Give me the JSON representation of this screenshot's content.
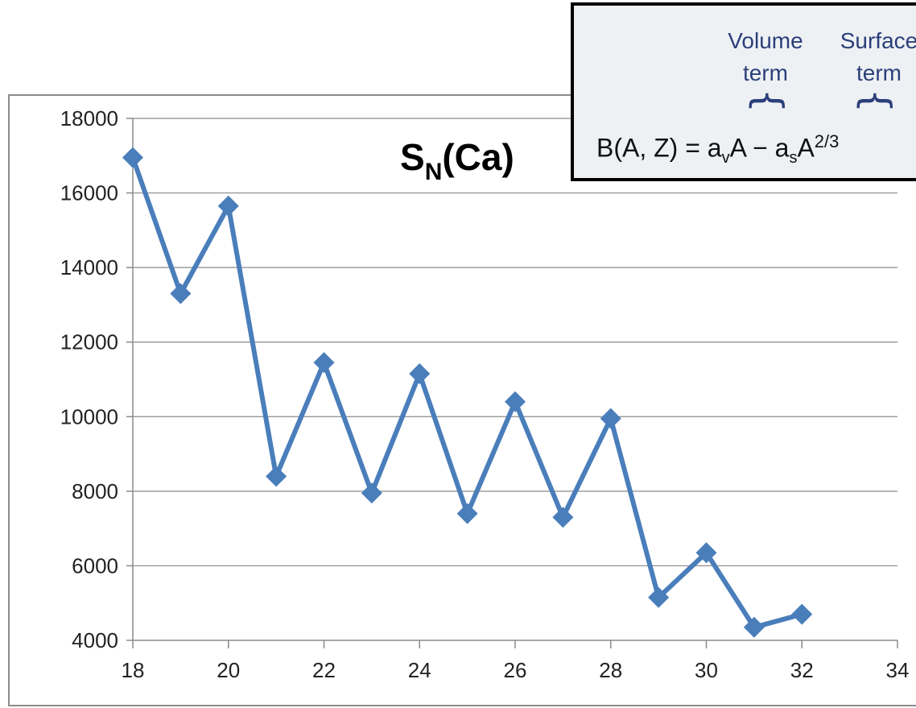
{
  "chart_data": {
    "type": "line",
    "title": "S",
    "title_subscript": "N",
    "title_suffix": "(Ca)",
    "xlabel": "",
    "ylabel": "",
    "xlim": [
      18,
      34
    ],
    "ylim": [
      4000,
      18000
    ],
    "x_ticks": [
      18,
      20,
      22,
      24,
      26,
      28,
      30,
      32,
      34
    ],
    "y_ticks": [
      4000,
      6000,
      8000,
      10000,
      12000,
      14000,
      16000,
      18000
    ],
    "grid": "horizontal",
    "marker": "diamond",
    "color": "#4a7ebb",
    "series": [
      {
        "x": [
          18,
          19,
          20,
          21,
          22,
          23,
          24,
          25,
          26,
          27,
          28,
          29,
          30,
          31,
          32
        ],
        "values": [
          16950,
          13300,
          15650,
          8400,
          11450,
          7950,
          11150,
          7400,
          10400,
          7300,
          9950,
          5150,
          6350,
          4350,
          4700
        ]
      }
    ]
  },
  "formula": {
    "volume_label": "Volume\nterm",
    "surface_label": "Surface\nterm",
    "brace": "{",
    "lhs": "B(A, Z) = a",
    "v_sub": "v",
    "mid": "A − a",
    "s_sub": "s",
    "a_after_s": "A",
    "exponent": "2/3"
  }
}
